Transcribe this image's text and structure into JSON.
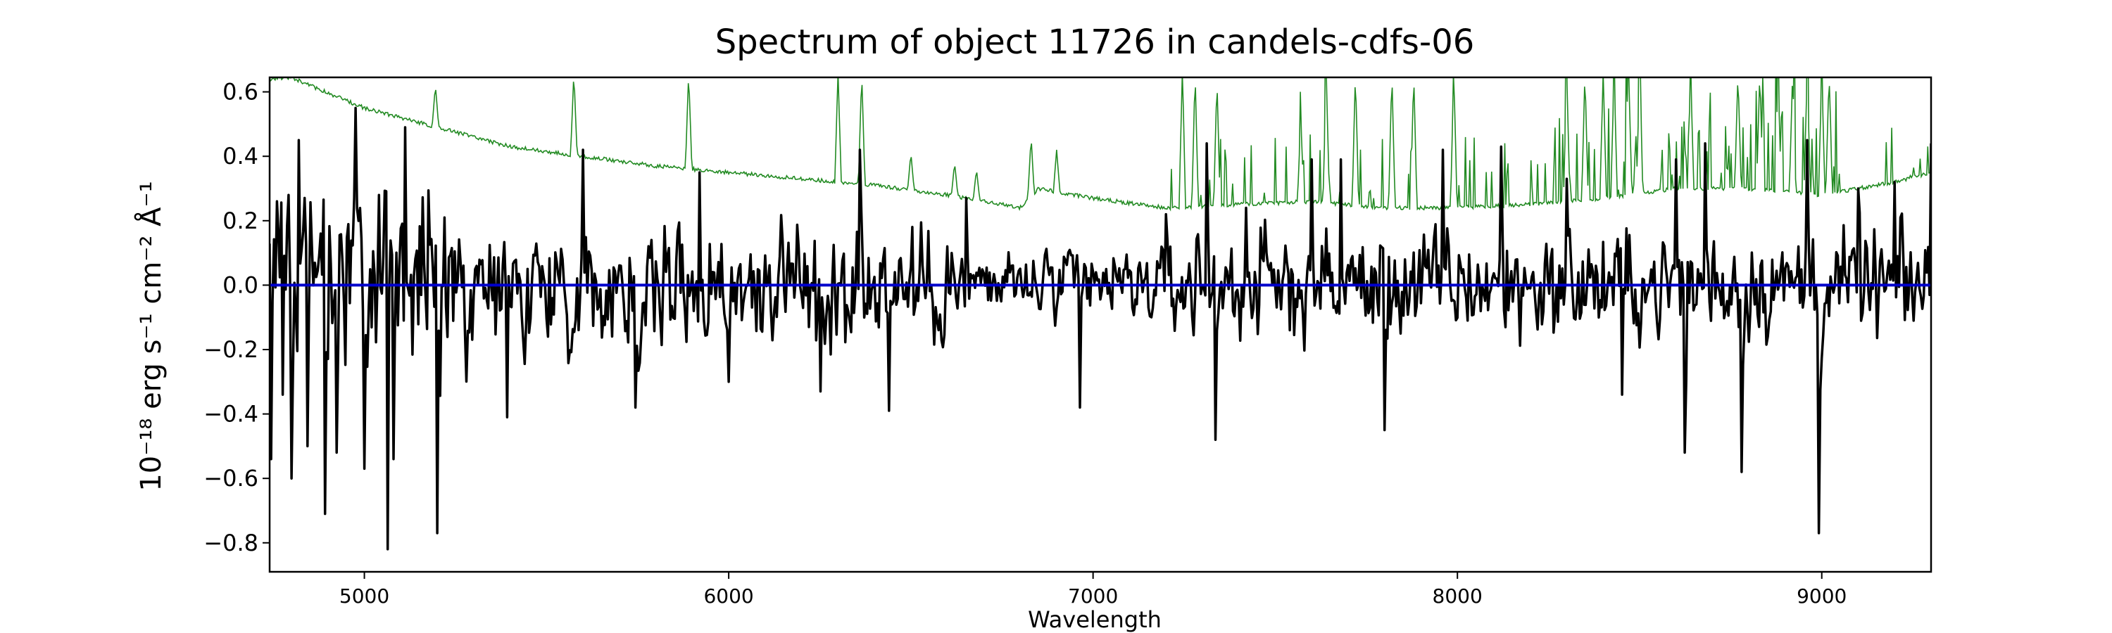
{
  "chart_data": {
    "type": "line",
    "title": "Spectrum of object 11726 in candels-cdfs-06",
    "xlabel": "Wavelength",
    "ylabel": "10⁻¹⁸ erg s⁻¹ cm⁻² Å⁻¹",
    "xlim": [
      4740,
      9300
    ],
    "ylim": [
      -0.89,
      0.645
    ],
    "xticks": [
      5000,
      6000,
      7000,
      8000,
      9000
    ],
    "yticks": [
      0.6,
      0.4,
      0.2,
      0.0,
      -0.2,
      -0.4,
      -0.6,
      -0.8
    ],
    "ytick_labels": [
      "0.6",
      "0.4",
      "0.2",
      "0.0",
      "−0.2",
      "−0.4",
      "−0.6",
      "−0.8"
    ],
    "grid": false,
    "series": [
      {
        "role": "flux",
        "color": "#000000",
        "x_start": 4740,
        "x_step": 4,
        "values_note": "black noisy spectrum, approx. 1140 samples",
        "points": [
          [
            4745,
            -0.54
          ],
          [
            4760,
            0.26
          ],
          [
            4775,
            -0.34
          ],
          [
            4790,
            0.28
          ],
          [
            4800,
            -0.6
          ],
          [
            4820,
            0.45
          ],
          [
            4845,
            -0.5
          ],
          [
            4880,
            0.16
          ],
          [
            4890,
            -0.71
          ],
          [
            4925,
            -0.52
          ],
          [
            4975,
            0.55
          ],
          [
            5000,
            -0.57
          ],
          [
            5040,
            0.28
          ],
          [
            5065,
            -0.82
          ],
          [
            5080,
            -0.54
          ],
          [
            5110,
            0.49
          ],
          [
            5200,
            -0.77
          ],
          [
            5220,
            0.21
          ],
          [
            5390,
            -0.41
          ],
          [
            5600,
            0.42
          ],
          [
            5745,
            -0.38
          ],
          [
            5920,
            0.35
          ],
          [
            6000,
            -0.3
          ],
          [
            6250,
            -0.33
          ],
          [
            6360,
            0.42
          ],
          [
            6440,
            -0.39
          ],
          [
            6600,
            0.12
          ],
          [
            6650,
            0.27
          ],
          [
            6900,
            -0.07
          ],
          [
            6965,
            -0.38
          ],
          [
            7200,
            0.22
          ],
          [
            7310,
            0.44
          ],
          [
            7335,
            -0.48
          ],
          [
            7420,
            0.24
          ],
          [
            7600,
            0.39
          ],
          [
            7680,
            0.39
          ],
          [
            7800,
            -0.45
          ],
          [
            7960,
            0.42
          ],
          [
            8120,
            0.43
          ],
          [
            8300,
            0.33
          ],
          [
            8450,
            -0.34
          ],
          [
            8600,
            0.39
          ],
          [
            8625,
            -0.52
          ],
          [
            8680,
            0.44
          ],
          [
            8780,
            -0.58
          ],
          [
            8960,
            0.45
          ],
          [
            8990,
            -0.77
          ],
          [
            9100,
            0.3
          ],
          [
            9200,
            0.32
          ],
          [
            9300,
            0.44
          ]
        ]
      },
      {
        "role": "contamination",
        "color": "#238b23",
        "envelope": [
          [
            4740,
            0.64
          ],
          [
            4800,
            0.645
          ],
          [
            4850,
            0.62
          ],
          [
            5000,
            0.55
          ],
          [
            5200,
            0.49
          ],
          [
            5400,
            0.43
          ],
          [
            5600,
            0.4
          ],
          [
            5800,
            0.37
          ],
          [
            5900,
            0.36
          ],
          [
            6000,
            0.35
          ],
          [
            6200,
            0.33
          ],
          [
            6400,
            0.31
          ],
          [
            6600,
            0.28
          ],
          [
            6800,
            0.24
          ],
          [
            6850,
            0.3
          ],
          [
            7000,
            0.27
          ],
          [
            7200,
            0.24
          ],
          [
            7400,
            0.25
          ],
          [
            7600,
            0.26
          ],
          [
            7800,
            0.24
          ],
          [
            8000,
            0.24
          ],
          [
            8200,
            0.25
          ],
          [
            8400,
            0.27
          ],
          [
            8600,
            0.3
          ],
          [
            8800,
            0.3
          ],
          [
            9000,
            0.28
          ],
          [
            9200,
            0.32
          ],
          [
            9300,
            0.35
          ]
        ],
        "emission_lines": [
          [
            5195,
            0.62
          ],
          [
            5575,
            0.66
          ],
          [
            5890,
            0.66
          ],
          [
            6300,
            0.66
          ],
          [
            6365,
            0.66
          ],
          [
            6500,
            0.41
          ],
          [
            6620,
            0.38
          ],
          [
            6680,
            0.36
          ],
          [
            6830,
            0.46
          ],
          [
            6900,
            0.42
          ],
          [
            7245,
            0.66
          ],
          [
            7280,
            0.66
          ],
          [
            7340,
            0.64
          ],
          [
            7570,
            0.52
          ],
          [
            7640,
            0.66
          ],
          [
            7720,
            0.66
          ],
          [
            7820,
            0.66
          ],
          [
            7880,
            0.66
          ],
          [
            7990,
            0.66
          ],
          [
            8300,
            0.66
          ],
          [
            8350,
            0.66
          ],
          [
            8400,
            0.66
          ],
          [
            8430,
            0.66
          ],
          [
            8470,
            0.66
          ],
          [
            8500,
            0.66
          ],
          [
            8640,
            0.66
          ],
          [
            8770,
            0.66
          ],
          [
            8830,
            0.66
          ],
          [
            8880,
            0.66
          ],
          [
            8920,
            0.66
          ],
          [
            8960,
            0.66
          ],
          [
            9000,
            0.66
          ],
          [
            9020,
            0.66
          ]
        ]
      },
      {
        "role": "zero",
        "color": "#0000cc",
        "values": [
          [
            4740,
            0.0
          ],
          [
            9300,
            0.0
          ]
        ]
      }
    ]
  }
}
